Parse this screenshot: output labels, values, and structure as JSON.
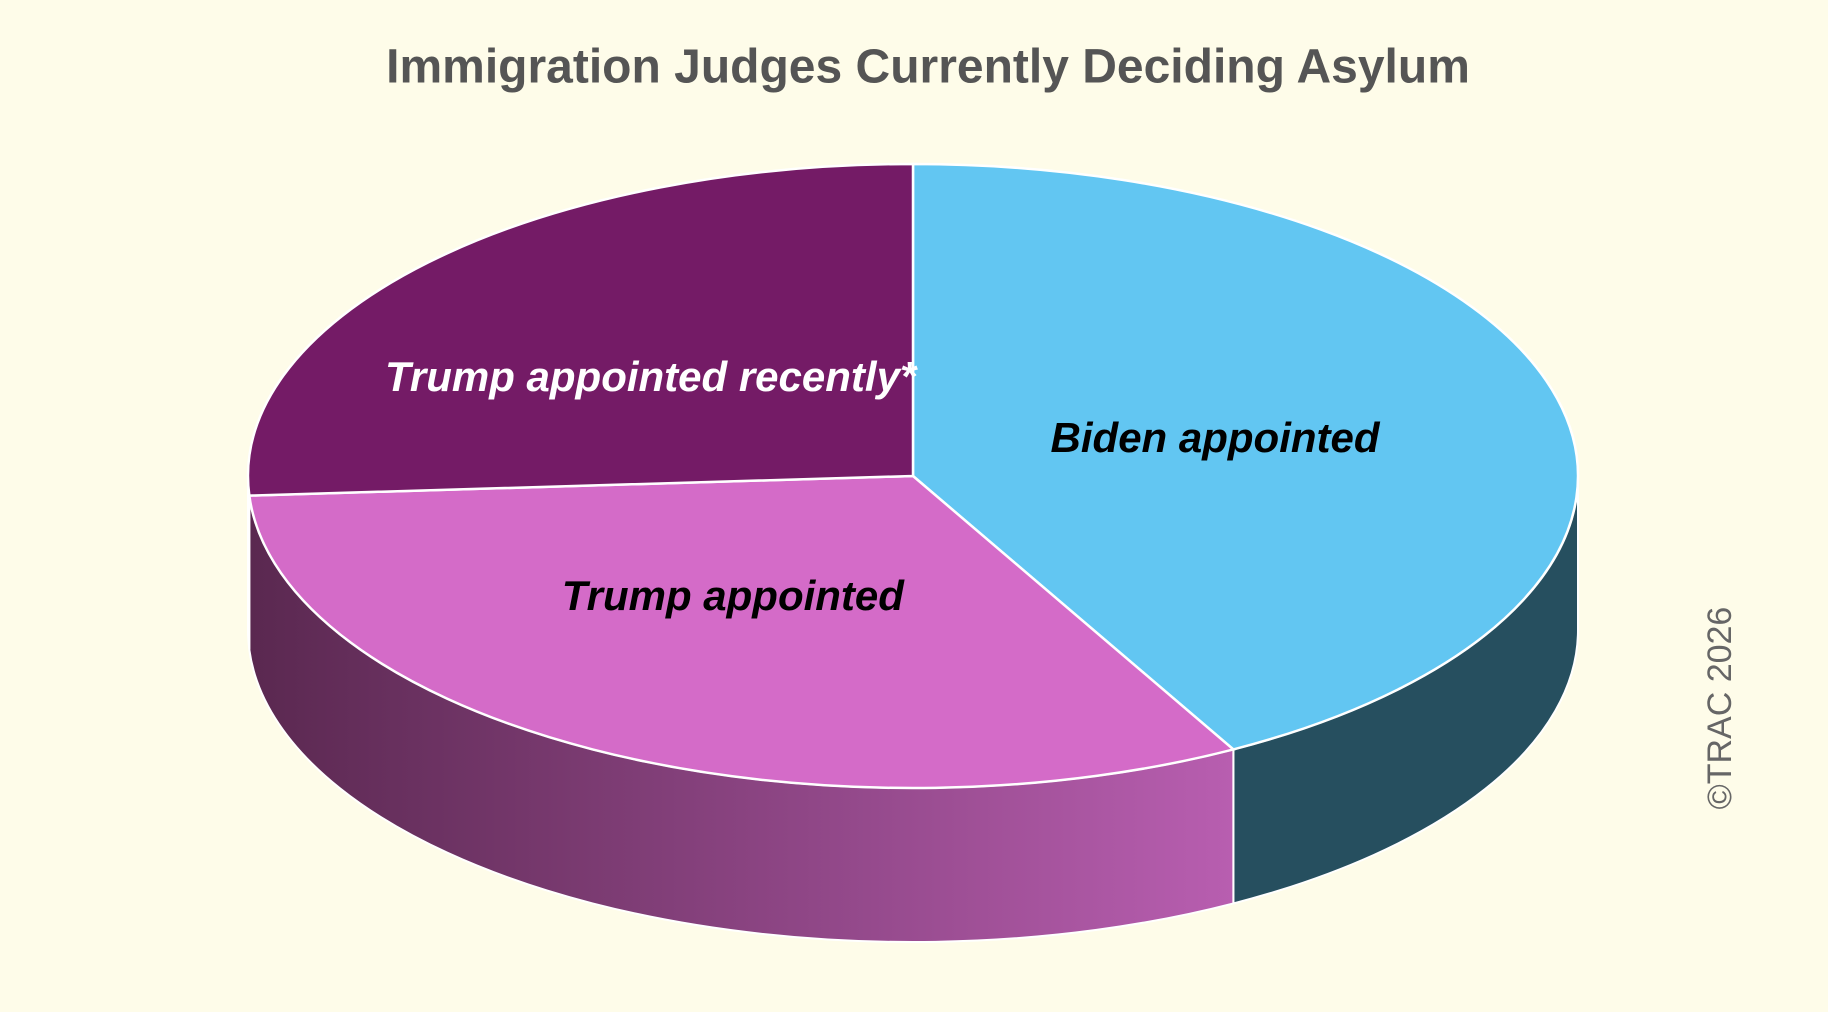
{
  "chart_data": {
    "type": "pie3d",
    "title": "Immigration Judges Currently Deciding Asylum",
    "categories": [
      "Biden appointed",
      "Trump appointed",
      "Trump appointed recently*"
    ],
    "values": [
      42,
      32,
      26
    ],
    "colors": [
      "#62c6f2",
      "#d46bc8",
      "#741b66"
    ],
    "side_colors": [
      "#264f5f",
      [
        "#b85eb0",
        "#5a2850"
      ],
      "#4a1040"
    ],
    "label_colors": [
      "#000000",
      "#000000",
      "#ffffff"
    ],
    "credit": "©TRAC 2026"
  }
}
